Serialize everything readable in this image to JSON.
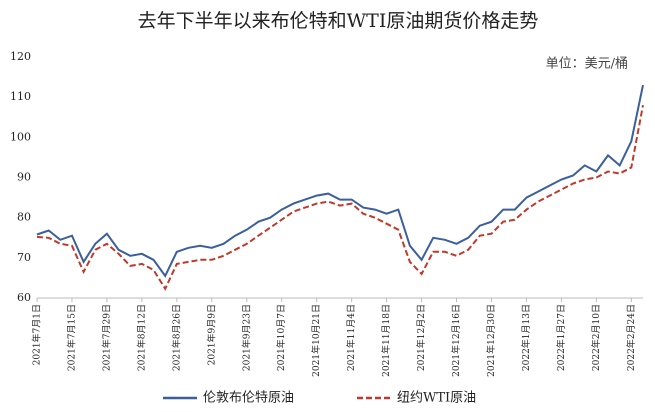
{
  "chart_data": {
    "type": "line",
    "title": "去年下半年以来布伦特和WTI原油期货价格走势",
    "unit": "单位：美元/桶",
    "categories": [
      "2021年7月1日",
      null,
      null,
      "2021年7月15日",
      null,
      null,
      "2021年7月29日",
      null,
      null,
      "2021年8月12日",
      null,
      null,
      "2021年8月26日",
      null,
      null,
      "2021年9月9日",
      null,
      null,
      "2021年9月23日",
      null,
      null,
      "2021年10月7日",
      null,
      null,
      "2021年10月21日",
      null,
      null,
      "2021年11月4日",
      null,
      null,
      "2021年11月18日",
      null,
      null,
      "2021年12月2日",
      null,
      null,
      "2021年12月16日",
      null,
      null,
      "2021年12月30日",
      null,
      null,
      "2022年1月13日",
      null,
      null,
      "2022年1月27日",
      null,
      null,
      "2022年2月10日",
      null,
      null,
      "2022年2月24日",
      null
    ],
    "series": [
      {
        "name": "伦敦布伦特原油",
        "color": "#3a5f9c",
        "dashed": false,
        "values": [
          75.8,
          76.8,
          74.5,
          75.5,
          69,
          73.5,
          76,
          72,
          70.5,
          71,
          69.5,
          65.5,
          71.5,
          72.5,
          73,
          72.5,
          73.5,
          75.5,
          77,
          79,
          80,
          82,
          83.5,
          84.5,
          85.5,
          86,
          84.5,
          84.5,
          82.5,
          82,
          81,
          82,
          73,
          69.5,
          75,
          74.5,
          73.5,
          75,
          78,
          79,
          82,
          82,
          85,
          86.5,
          88,
          89.5,
          90.5,
          93,
          91.5,
          95.5,
          93,
          99,
          113
        ]
      },
      {
        "name": "纽约WTI原油",
        "color": "#c0392b",
        "dashed": true,
        "values": [
          75.2,
          75,
          73.5,
          73,
          66.5,
          72,
          73.5,
          71,
          68,
          68.5,
          67,
          62.3,
          68.5,
          69,
          69.5,
          69.5,
          70.5,
          72,
          73.5,
          75.5,
          77.5,
          79.5,
          81.5,
          82.5,
          83.5,
          84,
          83,
          83.5,
          81,
          80,
          78.5,
          77,
          69,
          66,
          71.5,
          71.5,
          70.5,
          72,
          75.5,
          76,
          79,
          79.5,
          82,
          84,
          85.5,
          87,
          88.5,
          89.5,
          90,
          91.5,
          91,
          92.5,
          108
        ]
      }
    ],
    "ylim": [
      60,
      120
    ],
    "yticks": [
      60,
      70,
      80,
      90,
      100,
      110,
      120
    ],
    "grid": false
  }
}
